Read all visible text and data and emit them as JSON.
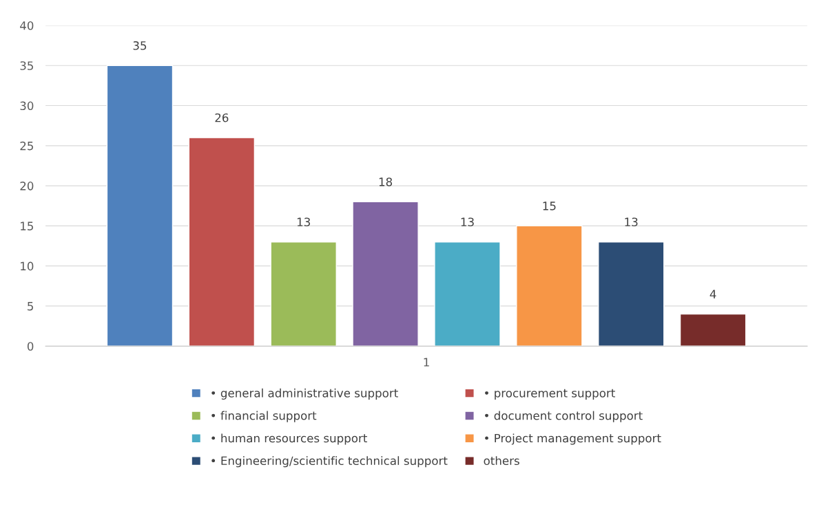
{
  "chart_data": {
    "type": "bar",
    "categories": [
      "1"
    ],
    "series": [
      {
        "name": "• general administrative support",
        "color": "#4f81bd",
        "values": [
          35
        ]
      },
      {
        "name": "• procurement support",
        "color": "#c0504d",
        "values": [
          26
        ]
      },
      {
        "name": "• financial support",
        "color": "#9bbb59",
        "values": [
          13
        ]
      },
      {
        "name": "• document control support",
        "color": "#8064a2",
        "values": [
          18
        ]
      },
      {
        "name": "• human resources support",
        "color": "#4bacc6",
        "values": [
          13
        ]
      },
      {
        "name": "• Project management support",
        "color": "#f79646",
        "values": [
          15
        ]
      },
      {
        "name": "• Engineering/scientific technical support",
        "color": "#2c4d75",
        "values": [
          13
        ]
      },
      {
        "name": "others",
        "color": "#772c2a",
        "values": [
          4
        ]
      }
    ],
    "ylim": [
      0,
      40
    ],
    "yticks": [
      0,
      5,
      10,
      15,
      20,
      25,
      30,
      35,
      40
    ],
    "grid": "y",
    "data_labels": true,
    "legend": "bottom"
  }
}
